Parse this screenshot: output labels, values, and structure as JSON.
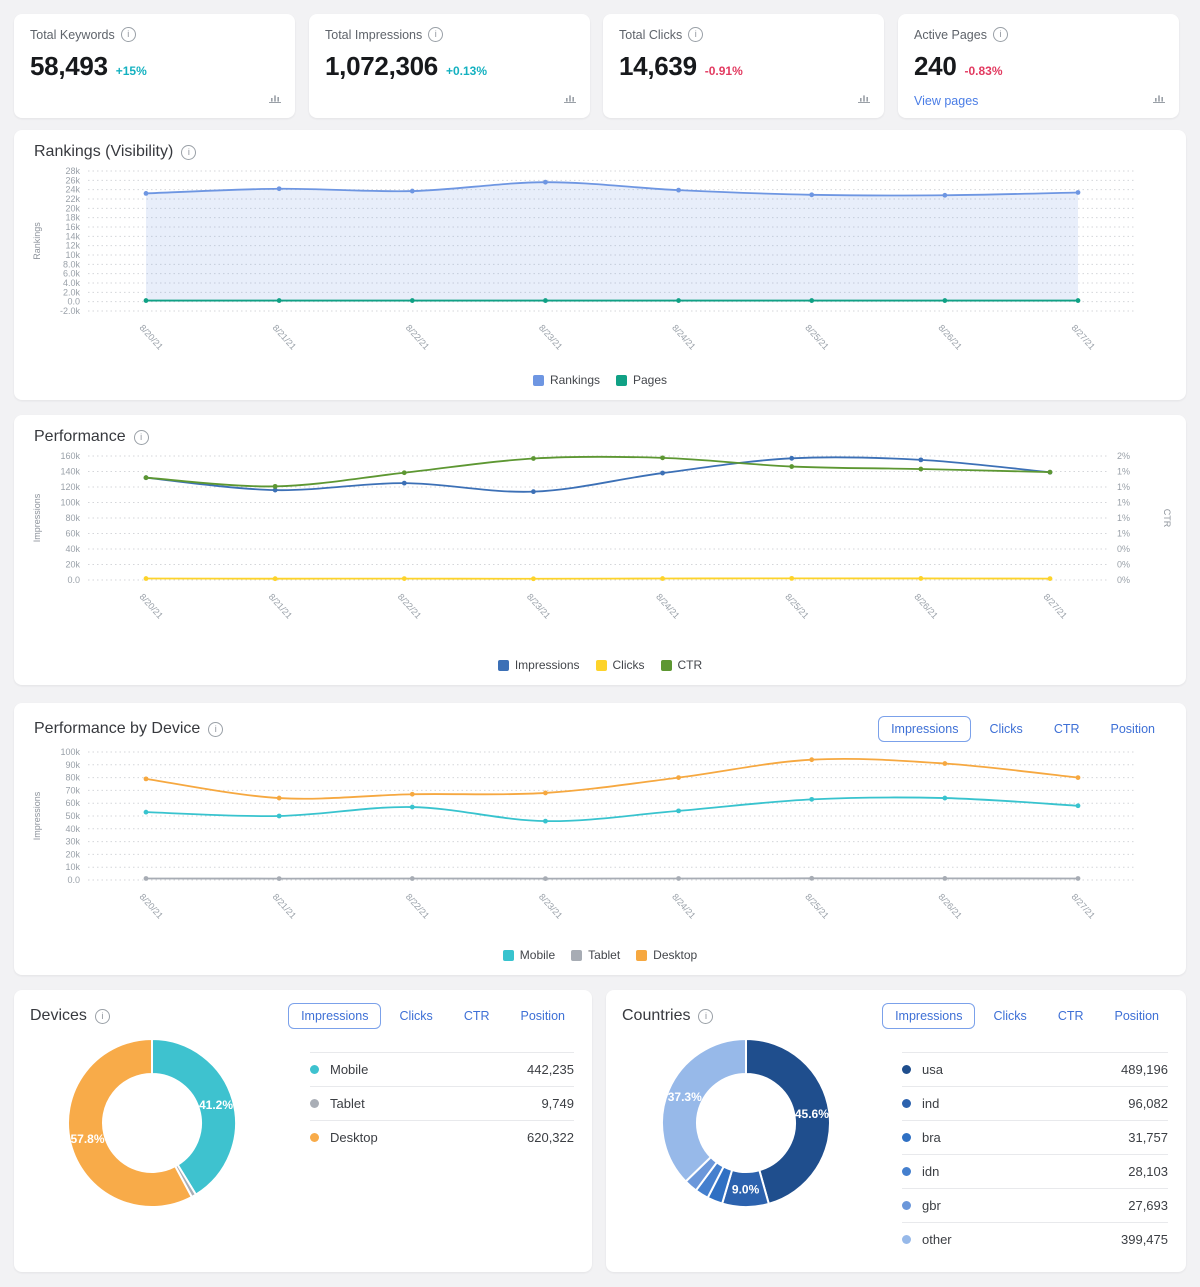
{
  "cards": [
    {
      "label": "Total Keywords",
      "value": "58,493",
      "delta": "+15%",
      "trend": "up"
    },
    {
      "label": "Total Impressions",
      "value": "1,072,306",
      "delta": "+0.13%",
      "trend": "up"
    },
    {
      "label": "Total Clicks",
      "value": "14,639",
      "delta": "-0.91%",
      "trend": "down"
    },
    {
      "label": "Active Pages",
      "value": "240",
      "delta": "-0.83%",
      "trend": "down",
      "link": "View pages"
    }
  ],
  "tabs": {
    "items": [
      "Impressions",
      "Clicks",
      "CTR",
      "Position"
    ],
    "active": "Impressions"
  },
  "panels": {
    "rankings": {
      "title": "Rankings (Visibility)"
    },
    "performance": {
      "title": "Performance"
    },
    "device": {
      "title": "Performance by Device"
    },
    "devices": {
      "title": "Devices"
    },
    "countries": {
      "title": "Countries"
    }
  },
  "colors": {
    "positive": "#14b1c0",
    "negative": "#e23a60",
    "link": "#4a7de6",
    "grid": "#d4d6da",
    "axis_text": "#9aa1a9"
  },
  "chart_data": [
    {
      "id": "rankings",
      "type": "area",
      "title": "Rankings (Visibility)",
      "ylabel": "Rankings",
      "ylim": [
        -2000,
        28000
      ],
      "grid": "dotted",
      "legend_position": "bottom",
      "yticks": [
        "-2.0k",
        "0.0",
        "2.0k",
        "4.0k",
        "6.0k",
        "8.0k",
        "10k",
        "12k",
        "14k",
        "16k",
        "18k",
        "20k",
        "22k",
        "24k",
        "26k",
        "28k"
      ],
      "x": [
        "8/20/21",
        "8/21/21",
        "8/22/21",
        "8/23/21",
        "8/24/21",
        "8/25/21",
        "8/26/21",
        "8/27/21"
      ],
      "series": [
        {
          "name": "Rankings",
          "color": "#6e96e2",
          "fill": "rgba(110,150,226,0.16)",
          "values": [
            23200,
            24200,
            23700,
            25600,
            23900,
            22900,
            22800,
            23400
          ]
        },
        {
          "name": "Pages",
          "color": "#10a185",
          "values": [
            240,
            240,
            240,
            240,
            240,
            240,
            240,
            240
          ]
        }
      ]
    },
    {
      "id": "performance",
      "type": "line",
      "title": "Performance",
      "ylabel": "Impressions",
      "y2label": "CTR",
      "ylim": [
        0,
        160000
      ],
      "y2lim": [
        0,
        2
      ],
      "grid": "dotted",
      "legend_position": "bottom",
      "yticks": [
        "0.0",
        "20k",
        "40k",
        "60k",
        "80k",
        "100k",
        "120k",
        "140k",
        "160k"
      ],
      "y2ticks": [
        "0%",
        "0%",
        "0%",
        "1%",
        "1%",
        "1%",
        "1%",
        "1%",
        "2%"
      ],
      "x": [
        "8/20/21",
        "8/21/21",
        "8/22/21",
        "8/23/21",
        "8/24/21",
        "8/25/21",
        "8/26/21",
        "8/27/21"
      ],
      "series": [
        {
          "name": "Impressions",
          "color": "#3c70b6",
          "values": [
            132000,
            116000,
            125000,
            114000,
            138000,
            157000,
            155000,
            139000
          ]
        },
        {
          "name": "Clicks",
          "color": "#fdd32a",
          "values": [
            1900,
            1700,
            1800,
            1600,
            1900,
            2100,
            2000,
            1800
          ]
        },
        {
          "name": "CTR",
          "color": "#5d9732",
          "axis": "right",
          "values": [
            1.65,
            1.51,
            1.73,
            1.96,
            1.97,
            1.83,
            1.79,
            1.74
          ]
        }
      ]
    },
    {
      "id": "device",
      "type": "line",
      "title": "Performance by Device",
      "ylabel": "Impressions",
      "ylim": [
        0,
        100000
      ],
      "grid": "dotted",
      "legend_position": "bottom",
      "yticks": [
        "0.0",
        "10k",
        "20k",
        "30k",
        "40k",
        "50k",
        "60k",
        "70k",
        "80k",
        "90k",
        "100k"
      ],
      "x": [
        "8/20/21",
        "8/21/21",
        "8/22/21",
        "8/23/21",
        "8/24/21",
        "8/25/21",
        "8/26/21",
        "8/27/21"
      ],
      "series": [
        {
          "name": "Mobile",
          "color": "#38c3ce",
          "values": [
            53000,
            50000,
            57000,
            46000,
            54000,
            63000,
            64000,
            58000
          ]
        },
        {
          "name": "Tablet",
          "color": "#a7acb4",
          "values": [
            1200,
            1100,
            1150,
            1100,
            1200,
            1300,
            1250,
            1200
          ]
        },
        {
          "name": "Desktop",
          "color": "#f6a840",
          "values": [
            79000,
            64000,
            67000,
            68000,
            80000,
            94000,
            91000,
            80000
          ]
        }
      ]
    },
    {
      "id": "devices-donut",
      "type": "pie",
      "title": "Devices",
      "slices": [
        {
          "name": "Mobile",
          "value": 442235,
          "pct": 41.2,
          "label": "41.2%",
          "color": "#3ec2cf",
          "display_value": "442,235"
        },
        {
          "name": "Tablet",
          "value": 9749,
          "pct": 0.9,
          "color": "#a9aeb6",
          "display_value": "9,749"
        },
        {
          "name": "Desktop",
          "value": 620322,
          "pct": 57.8,
          "label": "57.8%",
          "color": "#f8ab49",
          "display_value": "620,322"
        }
      ]
    },
    {
      "id": "countries-donut",
      "type": "pie",
      "title": "Countries",
      "slices": [
        {
          "name": "usa",
          "value": 489196,
          "pct": 45.6,
          "label": "45.6%",
          "color": "#1f4e8d",
          "display_value": "489,196"
        },
        {
          "name": "ind",
          "value": 96082,
          "pct": 9.0,
          "label": "9.0%",
          "color": "#2c62ae",
          "display_value": "96,082"
        },
        {
          "name": "bra",
          "value": 31757,
          "pct": 3.0,
          "color": "#2f70c3",
          "display_value": "31,757"
        },
        {
          "name": "idn",
          "value": 28103,
          "pct": 2.6,
          "color": "#447fce",
          "display_value": "28,103"
        },
        {
          "name": "gbr",
          "value": 27693,
          "pct": 2.6,
          "color": "#6b97da",
          "display_value": "27,693"
        },
        {
          "name": "other",
          "value": 399475,
          "pct": 37.3,
          "label": "37.3%",
          "color": "#97b9e9",
          "display_value": "399,475"
        }
      ]
    }
  ]
}
